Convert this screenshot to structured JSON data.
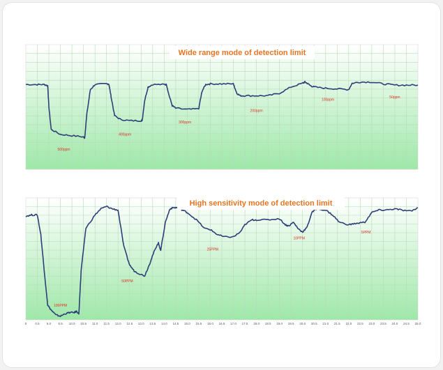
{
  "colors": {
    "plot_bg_top": "#ffffff",
    "plot_bg_bottom": "#9ee8a8",
    "grid": "#b9d9b9",
    "line": "#2c3e78",
    "title": "#e8741e",
    "annotation": "#e03020"
  },
  "chart_data": [
    {
      "type": "line",
      "title": "Wide range mode of detection limit",
      "xlabel": "",
      "ylabel": "",
      "grid": true,
      "xlim": [
        0,
        34
      ],
      "ylim": [
        0,
        10
      ],
      "x": [
        0,
        1,
        1.6,
        1.9,
        2,
        2.2,
        3,
        4,
        5,
        5.1,
        5.3,
        5.6,
        6,
        7,
        7.2,
        7.4,
        7.7,
        8.2,
        9,
        10,
        10.1,
        10.3,
        10.6,
        11,
        12,
        12.2,
        12.4,
        12.7,
        13,
        14,
        15,
        15.1,
        15.3,
        15.6,
        16,
        17,
        18,
        18.1,
        18.3,
        18.6,
        19,
        20,
        21,
        22,
        23,
        24,
        24.2,
        24.4,
        24.7,
        25,
        26,
        27,
        28,
        28.3,
        29,
        30,
        31,
        32,
        33,
        34
      ],
      "y": [
        6.8,
        6.8,
        6.8,
        6.7,
        5,
        3.2,
        2.8,
        2.7,
        2.6,
        2.5,
        4.5,
        6.4,
        6.8,
        6.85,
        6.85,
        5.8,
        4.3,
        4,
        3.9,
        3.9,
        3.95,
        5.5,
        6.6,
        6.8,
        6.8,
        6.8,
        6,
        5.1,
        4.9,
        4.8,
        4.85,
        5.4,
        6.3,
        6.8,
        6.85,
        6.85,
        6.85,
        6.6,
        6.1,
        5.9,
        5.9,
        5.9,
        5.9,
        6.1,
        6.6,
        6.9,
        7,
        6.9,
        6.7,
        6.6,
        6.5,
        6.45,
        6.4,
        6.9,
        7,
        7,
        6.85,
        6.75,
        6.75,
        6.75
      ],
      "annotations": [
        {
          "text": "500ppm",
          "x": 3.3,
          "y": 1.5
        },
        {
          "text": "400ppm",
          "x": 8.6,
          "y": 2.7
        },
        {
          "text": "300ppm",
          "x": 13.8,
          "y": 3.7
        },
        {
          "text": "200ppm",
          "x": 20,
          "y": 4.6
        },
        {
          "text": "100ppm",
          "x": 26.2,
          "y": 5.5
        },
        {
          "text": "50ppm",
          "x": 32,
          "y": 5.7
        }
      ]
    },
    {
      "type": "line",
      "title": "High sensitivity mode of detection limit",
      "xlabel": "",
      "ylabel": "",
      "grid": true,
      "xlim": [
        0,
        34
      ],
      "ylim": [
        0,
        10
      ],
      "xticks": [
        "0",
        "0.5",
        "6.0",
        "6.5",
        "10.0",
        "10.5",
        "11.0",
        "11.5",
        "12.0",
        "12.5",
        "13.0",
        "13.5",
        "14.0",
        "14.5",
        "15.0",
        "15.5",
        "16.0",
        "16.5",
        "17.0",
        "17.5",
        "18.0",
        "18.5",
        "19.0",
        "19.5",
        "20.0",
        "20.5",
        "21.0",
        "21.5",
        "22.0",
        "22.5",
        "23.0",
        "23.5",
        "24.0",
        "24.5",
        "25.0"
      ],
      "x": [
        0,
        0.5,
        1,
        1.3,
        1.6,
        1.9,
        2.2,
        2.6,
        3,
        3.4,
        3.8,
        4.2,
        4.4,
        4.6,
        4.8,
        5.2,
        6,
        6.5,
        7,
        7.5,
        8,
        8.5,
        9,
        9.4,
        9.8,
        10.3,
        10.7,
        10.9,
        11.2,
        11.5,
        11.7,
        12.1,
        12.5,
        12.8,
        13.2,
        13.6,
        14,
        14.8,
        15.5,
        16,
        16.6,
        17.2,
        18,
        18.6,
        19,
        19.6,
        20,
        21,
        22,
        22.5,
        22.8,
        23.2,
        23.6,
        24,
        24.4,
        24.8,
        25.2,
        26,
        26.6,
        27.2,
        28,
        28.6,
        29.4,
        30,
        30.6,
        31.2,
        32,
        32.6,
        33.4,
        34
      ],
      "y": [
        8.5,
        8.6,
        8.6,
        7,
        4,
        1.2,
        0.8,
        0.4,
        0.3,
        0.5,
        0.6,
        0.6,
        0.7,
        0.5,
        4,
        7.5,
        8.6,
        9.1,
        9.3,
        9.1,
        9,
        6,
        4.5,
        4,
        3.8,
        3.6,
        4.5,
        5,
        5.8,
        6.3,
        5.7,
        8,
        9.1,
        9.2,
        9.2,
        9,
        8.8,
        8.2,
        7.5,
        7.4,
        7,
        6.8,
        6.8,
        7.2,
        7.8,
        8.2,
        8.2,
        8.2,
        8.3,
        7.8,
        7.7,
        8,
        7.5,
        7.2,
        7.6,
        8.8,
        9.1,
        9,
        8.6,
        8,
        7.8,
        7.9,
        8,
        8.8,
        9,
        9,
        9.1,
        9,
        8.9,
        9.2
      ],
      "annotations": [
        {
          "text": "100PPM",
          "x": 3,
          "y": 1.1
        },
        {
          "text": "50PPM",
          "x": 8.8,
          "y": 3.1
        },
        {
          "text": "25PPM",
          "x": 16.2,
          "y": 5.7
        },
        {
          "text": "10PPM",
          "x": 23.7,
          "y": 6.6
        },
        {
          "text": "5PPM",
          "x": 29.5,
          "y": 7.1
        }
      ]
    }
  ]
}
